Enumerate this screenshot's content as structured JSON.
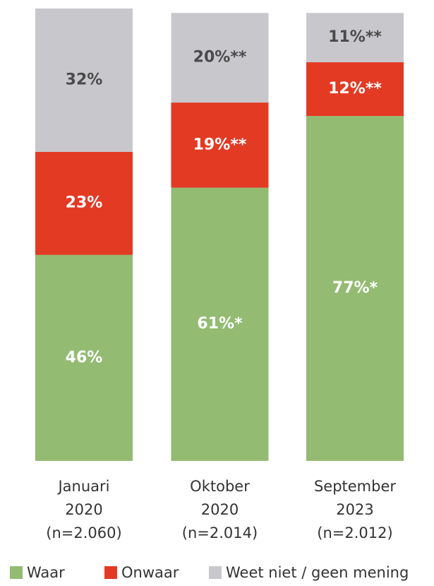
{
  "chart_data": {
    "type": "stacked_bar",
    "categories": [
      "Januari\n2020\n(n=2.060)",
      "Oktober\n2020\n(n=2.014)",
      "September\n2023\n(n=2.012)"
    ],
    "series": [
      {
        "name": "Waar",
        "color": "#93bb72",
        "values": [
          46,
          61,
          77
        ],
        "value_labels": [
          "46%",
          "61%*",
          "77%*"
        ]
      },
      {
        "name": "Onwaar",
        "color": "#e33a24",
        "values": [
          23,
          19,
          12
        ],
        "value_labels": [
          "23%",
          "19%**",
          "12%**"
        ]
      },
      {
        "name": "Weet niet / geen mening",
        "color": "#c8c8cc",
        "values": [
          32,
          20,
          11
        ],
        "value_labels": [
          "32%",
          "20%**",
          "11%**"
        ]
      }
    ],
    "legend": "bottom"
  }
}
